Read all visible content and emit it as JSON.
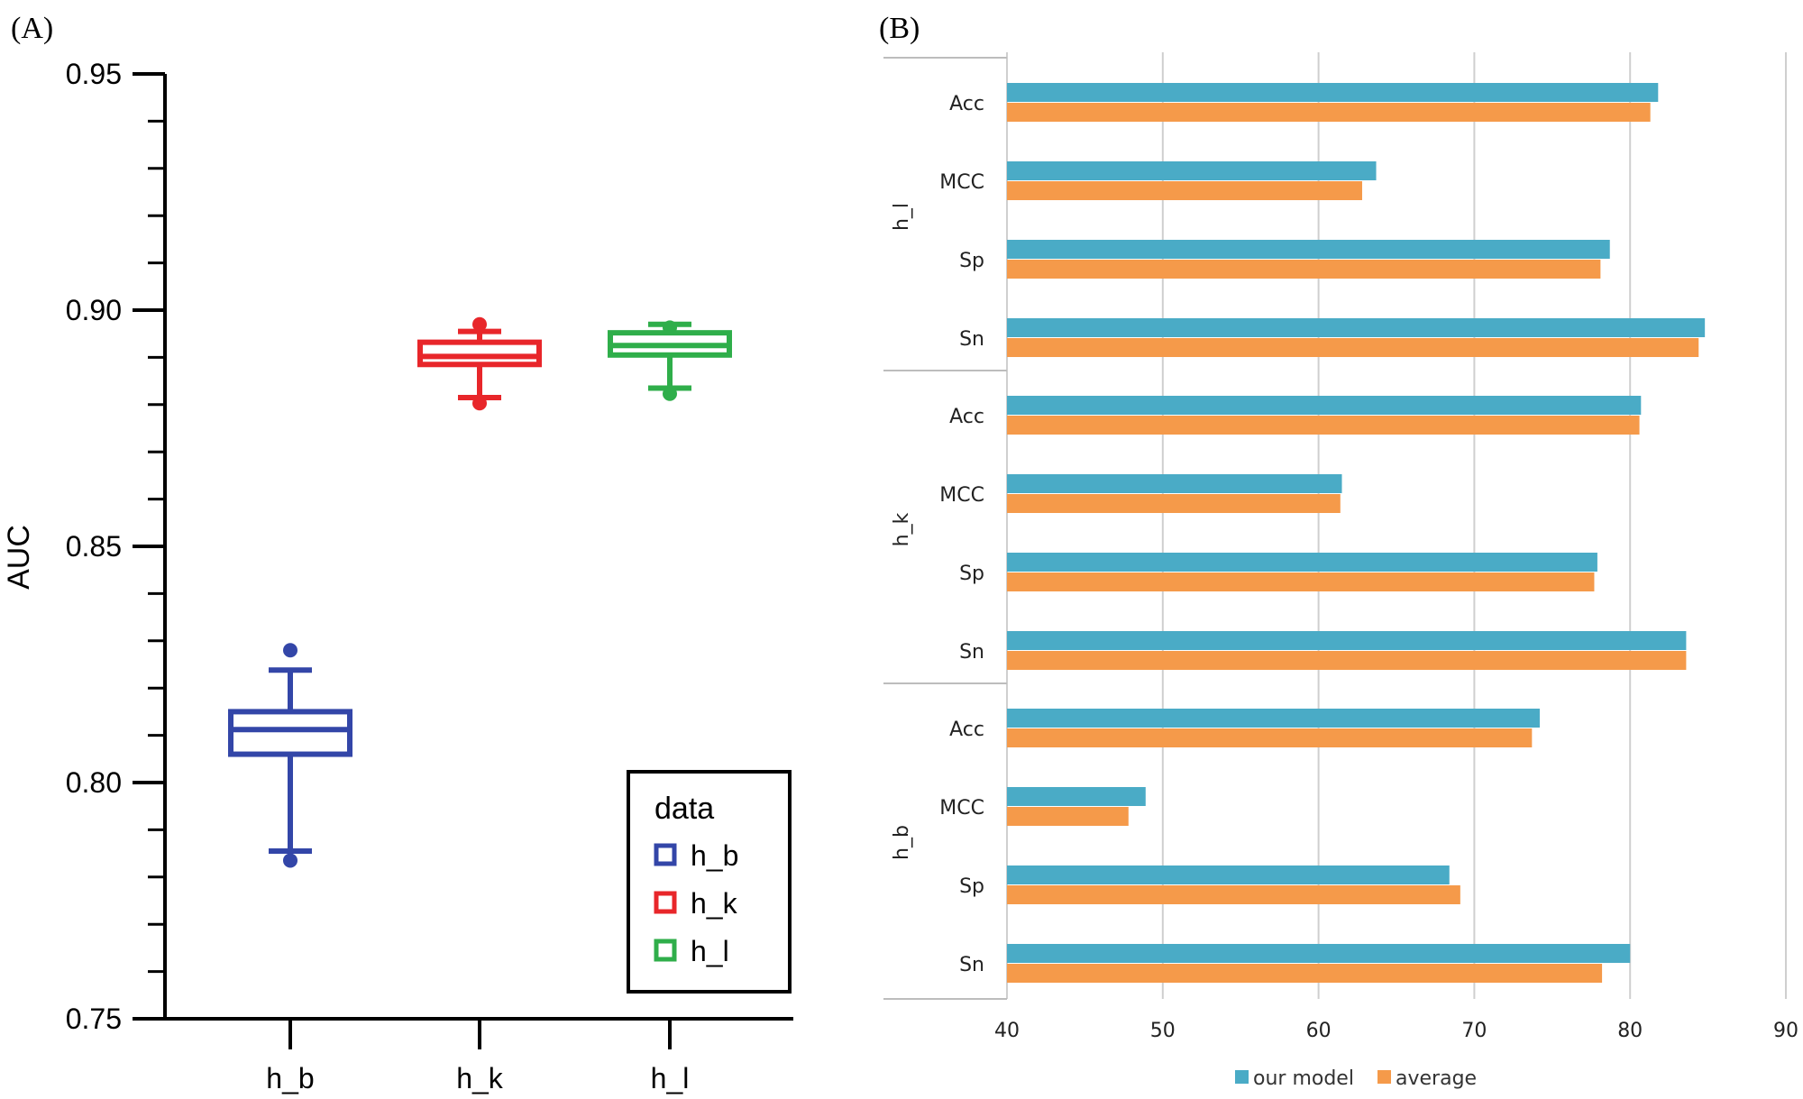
{
  "chart_data": [
    {
      "panel_label": "(A)",
      "type": "box",
      "ylabel": "AUC",
      "xlabel": "",
      "ylim": [
        0.75,
        0.95
      ],
      "yticks": [
        "0.75",
        "0.80",
        "0.85",
        "0.90",
        "0.95"
      ],
      "categories": [
        "h_b",
        "h_k",
        "h_l"
      ],
      "boxes": [
        {
          "name": "h_b",
          "color": "#3346a8",
          "whisker_low": 0.7855,
          "q1": 0.806,
          "median": 0.8112,
          "q3": 0.815,
          "whisker_high": 0.8238,
          "outliers": [
            0.7835,
            0.828
          ]
        },
        {
          "name": "h_k",
          "color": "#e8262a",
          "whisker_low": 0.8815,
          "q1": 0.8885,
          "median": 0.8902,
          "q3": 0.8932,
          "whisker_high": 0.8955,
          "outliers": [
            0.8803,
            0.897
          ]
        },
        {
          "name": "h_l",
          "color": "#2fae4a",
          "whisker_low": 0.8835,
          "q1": 0.8905,
          "median": 0.8925,
          "q3": 0.8952,
          "whisker_high": 0.897,
          "outliers": [
            0.8823,
            0.8963
          ]
        }
      ],
      "legend": {
        "title": "data",
        "entries": [
          "h_b",
          "h_k",
          "h_l"
        ],
        "position": "bottom-right"
      }
    },
    {
      "panel_label": "(B)",
      "type": "bar",
      "orientation": "horizontal",
      "xlim": [
        40,
        90
      ],
      "xticks": [
        "40",
        "50",
        "60",
        "70",
        "80",
        "90"
      ],
      "grid": true,
      "series": [
        {
          "name": "our model",
          "color": "#4aabc6"
        },
        {
          "name": "average",
          "color": "#f59a4a"
        }
      ],
      "groups": [
        {
          "name": "h_l",
          "categories": [
            "Acc",
            "MCC",
            "Sp",
            "Sn"
          ],
          "our_model": [
            81.8,
            63.7,
            78.7,
            84.8
          ],
          "average": [
            81.3,
            62.8,
            78.1,
            84.4
          ]
        },
        {
          "name": "h_k",
          "categories": [
            "Acc",
            "MCC",
            "Sp",
            "Sn"
          ],
          "our_model": [
            80.7,
            61.5,
            77.9,
            83.6
          ],
          "average": [
            80.6,
            61.4,
            77.7,
            83.6
          ]
        },
        {
          "name": "h_b",
          "categories": [
            "Acc",
            "MCC",
            "Sp",
            "Sn"
          ],
          "our_model": [
            74.2,
            48.9,
            68.4,
            80.0
          ],
          "average": [
            73.7,
            47.8,
            69.1,
            78.2
          ]
        }
      ],
      "legend": {
        "entries": [
          "our model",
          "average"
        ],
        "position": "bottom"
      }
    }
  ]
}
